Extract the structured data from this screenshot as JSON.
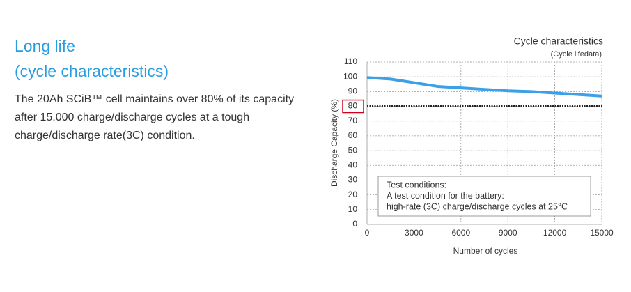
{
  "heading": [
    "Long life",
    "(cycle characteristics)"
  ],
  "body": [
    "The 20Ah SCiB™ cell maintains over 80% of its capacity",
    "after 15,000 charge/discharge cycles at a tough",
    "charge/discharge rate(3C) condition."
  ],
  "chart_data": {
    "type": "line",
    "title": "Cycle characteristics",
    "subtitle": "(Cycle lifedata)",
    "x_label": "Number of cycles",
    "y_label": "Discharge Capacity (%)",
    "x": [
      0,
      1500,
      3000,
      4500,
      6000,
      7500,
      9000,
      10500,
      12000,
      13500,
      15000
    ],
    "series": [
      {
        "name": "Discharge capacity",
        "color": "#3ca0e8",
        "values": [
          99.5,
          98.5,
          96,
          93.5,
          92.5,
          91.5,
          90.5,
          90,
          89,
          88,
          87
        ]
      }
    ],
    "xlim": [
      0,
      15000
    ],
    "xticks": [
      0,
      3000,
      6000,
      9000,
      12000,
      15000
    ],
    "ylim": [
      0,
      110
    ],
    "yticks": [
      0,
      10,
      20,
      30,
      40,
      50,
      60,
      70,
      80,
      90,
      100,
      110
    ],
    "grid": true,
    "reference_line": 80,
    "highlighted_ytick": 80,
    "annotation": [
      "Test conditions:",
      "A test condition for the battery:",
      "high-rate (3C) charge/discharge cycles at 25°C"
    ]
  }
}
